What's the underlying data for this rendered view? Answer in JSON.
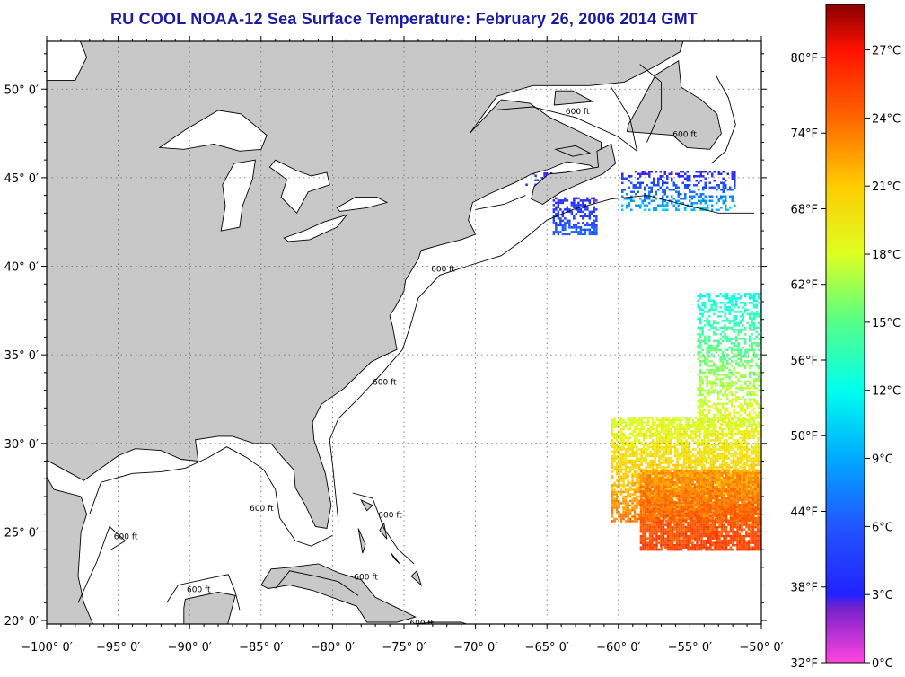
{
  "title": "RU COOL  NOAA-12  Sea Surface Temperature:  February 26, 2006 2014 GMT",
  "map": {
    "lon_range": [
      -100,
      -50
    ],
    "lat_range": [
      19.8,
      52.7
    ],
    "x_ticks": [
      {
        "lon": -100,
        "label": "−100° 0′"
      },
      {
        "lon": -95,
        "label": "−95° 0′"
      },
      {
        "lon": -90,
        "label": "−90° 0′"
      },
      {
        "lon": -85,
        "label": "−85° 0′"
      },
      {
        "lon": -80,
        "label": "−80° 0′"
      },
      {
        "lon": -75,
        "label": "−75° 0′"
      },
      {
        "lon": -70,
        "label": "−70° 0′"
      },
      {
        "lon": -65,
        "label": "−65° 0′"
      },
      {
        "lon": -60,
        "label": "−60° 0′"
      },
      {
        "lon": -55,
        "label": "−55° 0′"
      },
      {
        "lon": -50,
        "label": "−50° 0′"
      }
    ],
    "y_ticks": [
      {
        "lat": 20,
        "label": "20° 0′"
      },
      {
        "lat": 25,
        "label": "25° 0′"
      },
      {
        "lat": 30,
        "label": "30° 0′"
      },
      {
        "lat": 35,
        "label": "35° 0′"
      },
      {
        "lat": 40,
        "label": "40° 0′"
      },
      {
        "lat": 45,
        "label": "45° 0′"
      },
      {
        "lat": 50,
        "label": "50° 0′"
      }
    ],
    "contour_label": "600 ft",
    "land_color": "#c8c8c8",
    "water_color": "#ffffff"
  },
  "colorbar": {
    "min_c": 0,
    "max_c": 29,
    "celsius_ticks": [
      {
        "value": 0,
        "label": "0°C"
      },
      {
        "value": 3,
        "label": "3°C"
      },
      {
        "value": 6,
        "label": "6°C"
      },
      {
        "value": 9,
        "label": "9°C"
      },
      {
        "value": 12,
        "label": "12°C"
      },
      {
        "value": 15,
        "label": "15°C"
      },
      {
        "value": 18,
        "label": "18°C"
      },
      {
        "value": 21,
        "label": "21°C"
      },
      {
        "value": 24,
        "label": "24°C"
      },
      {
        "value": 27,
        "label": "27°C"
      }
    ],
    "fahrenheit_ticks": [
      {
        "value": 32,
        "label": "32°F"
      },
      {
        "value": 38,
        "label": "38°F"
      },
      {
        "value": 44,
        "label": "44°F"
      },
      {
        "value": 50,
        "label": "50°F"
      },
      {
        "value": 56,
        "label": "56°F"
      },
      {
        "value": 62,
        "label": "62°F"
      },
      {
        "value": 68,
        "label": "68°F"
      },
      {
        "value": 74,
        "label": "74°F"
      },
      {
        "value": 80,
        "label": "80°F"
      }
    ],
    "stops": [
      {
        "value": 0,
        "color": "#ff44dd"
      },
      {
        "value": 2.4,
        "color": "#7722cc"
      },
      {
        "value": 3,
        "color": "#2222ff"
      },
      {
        "value": 6,
        "color": "#2255ff"
      },
      {
        "value": 9,
        "color": "#00aaff"
      },
      {
        "value": 12,
        "color": "#00ffee"
      },
      {
        "value": 15,
        "color": "#55ff88"
      },
      {
        "value": 18,
        "color": "#ddff22"
      },
      {
        "value": 21,
        "color": "#ffcc00"
      },
      {
        "value": 24,
        "color": "#ff6600"
      },
      {
        "value": 27,
        "color": "#ff1100"
      },
      {
        "value": 29,
        "color": "#880000"
      }
    ]
  },
  "sst_patches": [
    {
      "name": "gulf-of-maine-patch",
      "lon": [
        -64.6,
        -61.6
      ],
      "lat": [
        41.8,
        43.9
      ],
      "temp": [
        3,
        6.5
      ],
      "density": 0.55
    },
    {
      "name": "bay-of-fundy-patch",
      "lon": [
        -66.5,
        -63.8
      ],
      "lat": [
        44.4,
        45.3
      ],
      "temp": [
        3,
        5
      ],
      "density": 0.2
    },
    {
      "name": "grand-banks-patch",
      "lon": [
        -59.8,
        -51.8
      ],
      "lat": [
        43.2,
        45.4
      ],
      "temp": [
        3,
        10
      ],
      "density": 0.35
    },
    {
      "name": "sargasso-cool-patch",
      "lon": [
        -54.5,
        -50
      ],
      "lat": [
        31,
        38.5
      ],
      "temp": [
        12,
        19
      ],
      "density": 0.5
    },
    {
      "name": "sargasso-warm-patch",
      "lon": [
        -60.5,
        -50
      ],
      "lat": [
        25.6,
        31.5
      ],
      "temp": [
        18,
        23.5
      ],
      "density": 0.75
    },
    {
      "name": "subtropical-warm-patch",
      "lon": [
        -58.5,
        -50
      ],
      "lat": [
        24,
        28.5
      ],
      "temp": [
        22.5,
        25.5
      ],
      "density": 0.9
    }
  ]
}
